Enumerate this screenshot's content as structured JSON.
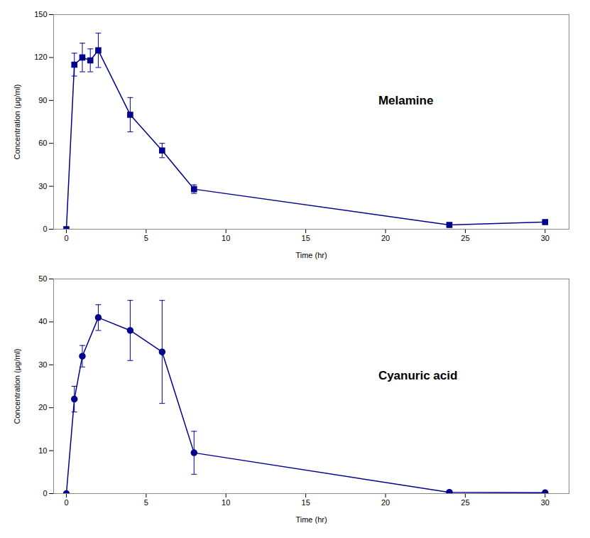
{
  "chart_data": [
    {
      "type": "line",
      "x": [
        0,
        0.5,
        1,
        1.5,
        2,
        4,
        6,
        8,
        24,
        30
      ],
      "values": [
        0,
        115,
        120,
        118,
        125,
        80,
        55,
        28,
        3,
        5
      ],
      "yerr": [
        0,
        8,
        10,
        8,
        12,
        12,
        5,
        3,
        1,
        1
      ],
      "xlim": [
        -0.8,
        31.5
      ],
      "xticks": [
        0,
        5,
        10,
        15,
        20,
        25,
        30
      ],
      "ylim": [
        0,
        150
      ],
      "yticks": [
        0,
        30,
        60,
        90,
        120,
        150
      ],
      "xlabel": "Time (hr)",
      "ylabel": "Concentration (μg/ml)",
      "annotation": "Melamine",
      "color": "#00008B",
      "marker": "square"
    },
    {
      "type": "line",
      "x": [
        0,
        0.5,
        1,
        2,
        4,
        6,
        8,
        24,
        30
      ],
      "values": [
        0,
        22,
        32,
        41,
        38,
        33,
        9.5,
        0.3,
        0.2
      ],
      "yerr": [
        0,
        3,
        2.5,
        3,
        7,
        12,
        5,
        0.2,
        0.1
      ],
      "xlim": [
        -0.8,
        31.5
      ],
      "xticks": [
        0,
        5,
        10,
        15,
        20,
        25,
        30
      ],
      "ylim": [
        0,
        50
      ],
      "yticks": [
        0,
        10,
        20,
        30,
        40,
        50
      ],
      "xlabel": "Time (hr)",
      "ylabel": "Concentration (μg/ml)",
      "annotation": "Cyanuric acid",
      "color": "#00008B",
      "marker": "circle"
    }
  ]
}
